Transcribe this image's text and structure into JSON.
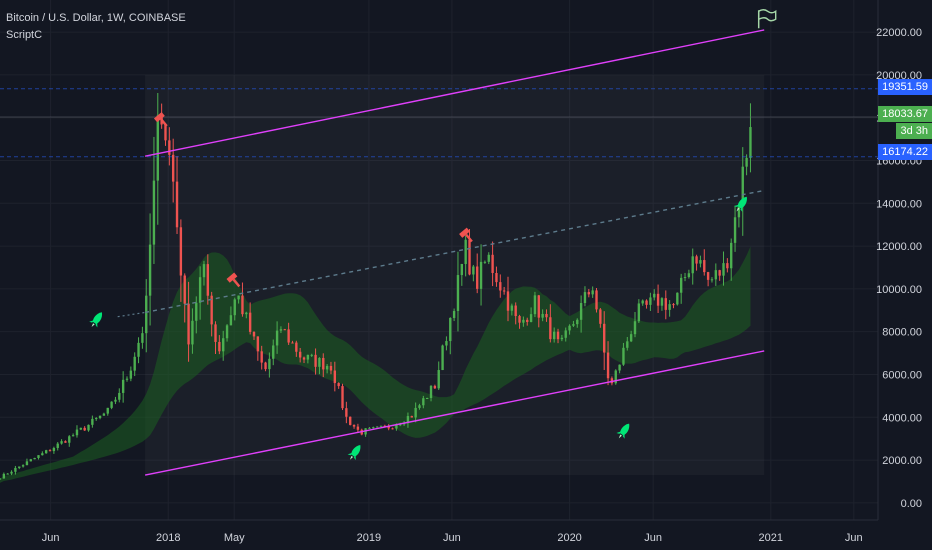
{
  "header": {
    "title": "Bitcoin / U.S. Dollar, 1W, COINBASE",
    "indicator": "ScriptC"
  },
  "price_labels": {
    "upper": "19351.59",
    "current": "18033.67",
    "countdown": "3d 3h",
    "lower": "16174.22"
  },
  "colors": {
    "background": "#131722",
    "up": "#26a69a",
    "up_bright": "#4caf50",
    "down": "#ef5350",
    "channel": "#e040fb",
    "cloud": "#1b5e20",
    "label_blue": "#2962ff",
    "label_green": "#4caf50",
    "midline": "#5d7b8c"
  },
  "chart_data": {
    "type": "candlestick",
    "y_ticks": [
      "22000.00",
      "20000.00",
      "18000.00",
      "16000.00",
      "14000.00",
      "12000.00",
      "10000.00",
      "8000.00",
      "6000.00",
      "4000.00",
      "2000.00",
      "0.00"
    ],
    "x_ticks": [
      "Jun",
      "2018",
      "May",
      "2019",
      "Jun",
      "2020",
      "Jun",
      "2021",
      "Jun"
    ],
    "ylim": [
      -800,
      23500
    ],
    "xlim": [
      "2017-03-01",
      "2021-07-15"
    ],
    "anchors": [
      {
        "date": "2017-03-01",
        "price": 1200
      },
      {
        "date": "2017-06-01",
        "price": 2500
      },
      {
        "date": "2017-08-01",
        "price": 3500
      },
      {
        "date": "2017-09-15",
        "price": 4300
      },
      {
        "date": "2017-10-20",
        "price": 6000
      },
      {
        "date": "2017-11-20",
        "price": 8500
      },
      {
        "date": "2017-12-17",
        "price": 19000
      },
      {
        "date": "2018-01-10",
        "price": 15000
      },
      {
        "date": "2018-02-05",
        "price": 7500
      },
      {
        "date": "2018-03-05",
        "price": 11000
      },
      {
        "date": "2018-04-01",
        "price": 7000
      },
      {
        "date": "2018-05-06",
        "price": 9800
      },
      {
        "date": "2018-06-25",
        "price": 6100
      },
      {
        "date": "2018-07-25",
        "price": 8200
      },
      {
        "date": "2018-09-01",
        "price": 6800
      },
      {
        "date": "2018-10-25",
        "price": 6400
      },
      {
        "date": "2018-11-20",
        "price": 4000
      },
      {
        "date": "2018-12-15",
        "price": 3300
      },
      {
        "date": "2019-02-01",
        "price": 3500
      },
      {
        "date": "2019-03-20",
        "price": 4100
      },
      {
        "date": "2019-05-01",
        "price": 5500
      },
      {
        "date": "2019-06-26",
        "price": 11800
      },
      {
        "date": "2019-07-15",
        "price": 10200
      },
      {
        "date": "2019-08-05",
        "price": 11500
      },
      {
        "date": "2019-09-01",
        "price": 10000
      },
      {
        "date": "2019-10-01",
        "price": 8200
      },
      {
        "date": "2019-10-28",
        "price": 9400
      },
      {
        "date": "2019-12-15",
        "price": 7200
      },
      {
        "date": "2020-02-12",
        "price": 10200
      },
      {
        "date": "2020-03-15",
        "price": 5300
      },
      {
        "date": "2020-05-01",
        "price": 8800
      },
      {
        "date": "2020-06-10",
        "price": 9500
      },
      {
        "date": "2020-07-10",
        "price": 9200
      },
      {
        "date": "2020-08-15",
        "price": 11800
      },
      {
        "date": "2020-09-10",
        "price": 10300
      },
      {
        "date": "2020-10-10",
        "price": 11000
      },
      {
        "date": "2020-11-01",
        "price": 13800
      },
      {
        "date": "2020-11-28",
        "price": 18033.67
      }
    ],
    "channel_upper": [
      {
        "date": "2017-11-20",
        "price": 16200
      },
      {
        "date": "2020-12-20",
        "price": 22100
      }
    ],
    "channel_lower": [
      {
        "date": "2017-11-20",
        "price": 1300
      },
      {
        "date": "2020-12-20",
        "price": 7100
      }
    ],
    "channel_mid": [
      {
        "date": "2017-11-20",
        "price": 8900
      },
      {
        "date": "2020-12-20",
        "price": 14600
      }
    ]
  }
}
